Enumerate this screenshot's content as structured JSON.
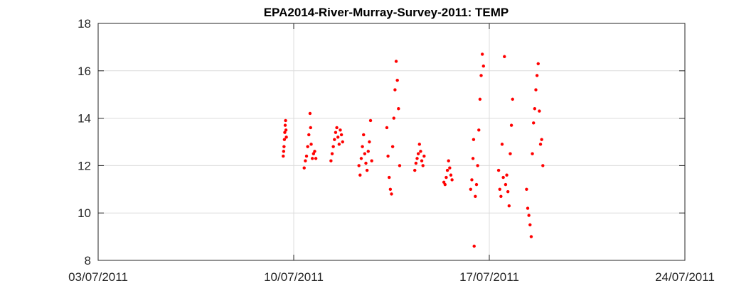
{
  "chart_data": {
    "type": "scatter",
    "title": "EPA2014-River-Murray-Survey-2011: TEMP",
    "xlabel": "",
    "ylabel": "",
    "x_axis_type": "date",
    "xlim": [
      "03/07/2011",
      "24/07/2011"
    ],
    "ylim": [
      8,
      18
    ],
    "xticks": [
      "03/07/2011",
      "10/07/2011",
      "17/07/2011",
      "24/07/2011"
    ],
    "yticks": [
      8,
      10,
      12,
      14,
      16,
      18
    ],
    "grid": true,
    "marker_color": "#ff0000",
    "series": [
      {
        "points": [
          [
            "2011-07-09 15:00",
            12.4
          ],
          [
            "2011-07-09 15:20",
            12.6
          ],
          [
            "2011-07-09 15:40",
            12.8
          ],
          [
            "2011-07-09 16:00",
            13.1
          ],
          [
            "2011-07-09 16:20",
            13.4
          ],
          [
            "2011-07-09 16:40",
            13.7
          ],
          [
            "2011-07-09 17:00",
            13.9
          ],
          [
            "2011-07-09 17:20",
            13.5
          ],
          [
            "2011-07-09 17:40",
            13.2
          ],
          [
            "2011-07-10 09:00",
            11.9
          ],
          [
            "2011-07-10 10:00",
            12.2
          ],
          [
            "2011-07-10 11:00",
            12.4
          ],
          [
            "2011-07-10 12:00",
            12.8
          ],
          [
            "2011-07-10 13:00",
            13.3
          ],
          [
            "2011-07-10 14:00",
            14.2
          ],
          [
            "2011-07-10 14:30",
            13.6
          ],
          [
            "2011-07-10 15:00",
            12.9
          ],
          [
            "2011-07-10 16:00",
            12.3
          ],
          [
            "2011-07-10 17:00",
            12.5
          ],
          [
            "2011-07-10 18:00",
            12.6
          ],
          [
            "2011-07-10 19:00",
            12.3
          ],
          [
            "2011-07-11 08:00",
            12.2
          ],
          [
            "2011-07-11 09:00",
            12.5
          ],
          [
            "2011-07-11 10:00",
            12.8
          ],
          [
            "2011-07-11 11:00",
            13.1
          ],
          [
            "2011-07-11 12:00",
            13.4
          ],
          [
            "2011-07-11 13:00",
            13.6
          ],
          [
            "2011-07-11 14:00",
            13.2
          ],
          [
            "2011-07-11 15:00",
            12.9
          ],
          [
            "2011-07-11 16:00",
            13.5
          ],
          [
            "2011-07-11 17:00",
            13.3
          ],
          [
            "2011-07-11 18:00",
            13.0
          ],
          [
            "2011-07-12 08:00",
            12.0
          ],
          [
            "2011-07-12 09:00",
            11.6
          ],
          [
            "2011-07-12 10:00",
            12.3
          ],
          [
            "2011-07-12 11:00",
            12.8
          ],
          [
            "2011-07-12 12:00",
            13.3
          ],
          [
            "2011-07-12 13:00",
            12.5
          ],
          [
            "2011-07-12 14:00",
            12.1
          ],
          [
            "2011-07-12 15:00",
            11.8
          ],
          [
            "2011-07-12 16:00",
            12.6
          ],
          [
            "2011-07-12 17:00",
            13.0
          ],
          [
            "2011-07-12 18:00",
            13.9
          ],
          [
            "2011-07-12 19:00",
            12.2
          ],
          [
            "2011-07-13 08:00",
            13.6
          ],
          [
            "2011-07-13 09:00",
            12.4
          ],
          [
            "2011-07-13 10:00",
            11.5
          ],
          [
            "2011-07-13 11:00",
            11.0
          ],
          [
            "2011-07-13 12:00",
            10.8
          ],
          [
            "2011-07-13 13:00",
            12.8
          ],
          [
            "2011-07-13 14:00",
            14.0
          ],
          [
            "2011-07-13 15:00",
            15.2
          ],
          [
            "2011-07-13 16:00",
            16.4
          ],
          [
            "2011-07-13 17:00",
            15.6
          ],
          [
            "2011-07-13 18:00",
            14.4
          ],
          [
            "2011-07-13 19:00",
            12.0
          ],
          [
            "2011-07-14 08:00",
            11.8
          ],
          [
            "2011-07-14 09:00",
            12.1
          ],
          [
            "2011-07-14 10:00",
            12.3
          ],
          [
            "2011-07-14 11:00",
            12.5
          ],
          [
            "2011-07-14 12:00",
            12.9
          ],
          [
            "2011-07-14 13:00",
            12.6
          ],
          [
            "2011-07-14 14:00",
            12.2
          ],
          [
            "2011-07-14 15:00",
            12.0
          ],
          [
            "2011-07-14 16:00",
            12.4
          ],
          [
            "2011-07-15 09:00",
            11.3
          ],
          [
            "2011-07-15 10:00",
            11.2
          ],
          [
            "2011-07-15 11:00",
            11.5
          ],
          [
            "2011-07-15 12:00",
            11.8
          ],
          [
            "2011-07-15 13:00",
            12.2
          ],
          [
            "2011-07-15 14:00",
            11.9
          ],
          [
            "2011-07-15 15:00",
            11.6
          ],
          [
            "2011-07-15 16:00",
            11.4
          ],
          [
            "2011-07-16 08:00",
            11.0
          ],
          [
            "2011-07-16 09:00",
            11.4
          ],
          [
            "2011-07-16 10:00",
            12.3
          ],
          [
            "2011-07-16 10:30",
            13.1
          ],
          [
            "2011-07-16 11:00",
            8.6
          ],
          [
            "2011-07-16 12:00",
            10.7
          ],
          [
            "2011-07-16 13:00",
            11.2
          ],
          [
            "2011-07-16 14:00",
            12.0
          ],
          [
            "2011-07-16 15:00",
            13.5
          ],
          [
            "2011-07-16 16:00",
            14.8
          ],
          [
            "2011-07-16 17:00",
            15.8
          ],
          [
            "2011-07-16 18:00",
            16.7
          ],
          [
            "2011-07-16 19:00",
            16.2
          ],
          [
            "2011-07-17 08:00",
            11.8
          ],
          [
            "2011-07-17 09:00",
            11.0
          ],
          [
            "2011-07-17 10:00",
            10.7
          ],
          [
            "2011-07-17 11:00",
            12.9
          ],
          [
            "2011-07-17 12:00",
            11.5
          ],
          [
            "2011-07-17 13:00",
            16.6
          ],
          [
            "2011-07-17 14:00",
            11.2
          ],
          [
            "2011-07-17 15:00",
            11.6
          ],
          [
            "2011-07-17 16:00",
            10.9
          ],
          [
            "2011-07-17 17:00",
            10.3
          ],
          [
            "2011-07-17 18:00",
            12.5
          ],
          [
            "2011-07-17 19:00",
            13.7
          ],
          [
            "2011-07-17 20:00",
            14.8
          ],
          [
            "2011-07-18 08:00",
            11.0
          ],
          [
            "2011-07-18 09:00",
            10.2
          ],
          [
            "2011-07-18 10:00",
            9.9
          ],
          [
            "2011-07-18 11:00",
            9.5
          ],
          [
            "2011-07-18 12:00",
            9.0
          ],
          [
            "2011-07-18 13:00",
            12.5
          ],
          [
            "2011-07-18 14:00",
            13.8
          ],
          [
            "2011-07-18 15:00",
            14.4
          ],
          [
            "2011-07-18 16:00",
            15.2
          ],
          [
            "2011-07-18 17:00",
            15.8
          ],
          [
            "2011-07-18 18:00",
            16.3
          ],
          [
            "2011-07-18 19:00",
            14.3
          ],
          [
            "2011-07-18 20:00",
            12.9
          ],
          [
            "2011-07-18 21:00",
            13.1
          ],
          [
            "2011-07-18 22:00",
            12.0
          ]
        ]
      }
    ]
  }
}
